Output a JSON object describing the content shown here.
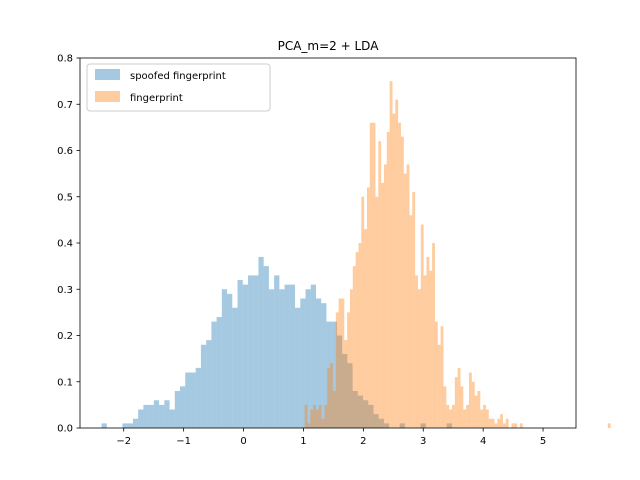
{
  "chart_data": {
    "type": "histogram",
    "title": "PCA_m=2 + LDA",
    "xlabel": "",
    "ylabel": "",
    "xlim": [
      -2.73,
      5.55
    ],
    "ylim": [
      0,
      0.8
    ],
    "xticks": [
      -2,
      -1,
      0,
      1,
      2,
      3,
      4,
      5
    ],
    "yticks": [
      0.0,
      0.1,
      0.2,
      0.3,
      0.4,
      0.5,
      0.6,
      0.7,
      0.8
    ],
    "grid": false,
    "legend_position": "upper-left",
    "series": [
      {
        "name": "spoofed fingerprint",
        "color": "#1f77b4",
        "alpha": 0.4,
        "bin_start": -2.37,
        "bin_width": 0.0873,
        "values": [
          0.01,
          0.0,
          0.0,
          0.0,
          0.01,
          0.01,
          0.02,
          0.04,
          0.05,
          0.05,
          0.06,
          0.05,
          0.06,
          0.04,
          0.08,
          0.09,
          0.12,
          0.12,
          0.13,
          0.18,
          0.19,
          0.23,
          0.24,
          0.3,
          0.29,
          0.26,
          0.32,
          0.31,
          0.33,
          0.33,
          0.37,
          0.35,
          0.3,
          0.33,
          0.3,
          0.31,
          0.31,
          0.26,
          0.28,
          0.3,
          0.31,
          0.28,
          0.27,
          0.23,
          0.23,
          0.2,
          0.16,
          0.14,
          0.08,
          0.07,
          0.06,
          0.05,
          0.03,
          0.02,
          0.01,
          0.0,
          0.0,
          0.01,
          0.0,
          0.0,
          0.0,
          0.01,
          0.0,
          0.0,
          0.0,
          0.0,
          0.01,
          0.0,
          0.0,
          0.0
        ]
      },
      {
        "name": "fingerprint",
        "color": "#ff7f0e",
        "alpha": 0.4,
        "bin_start": 1.02,
        "bin_width": 0.0473,
        "values": [
          0.05,
          0.01,
          0.04,
          0.05,
          0.04,
          0.05,
          0.02,
          0.05,
          0.13,
          0.14,
          0.08,
          0.25,
          0.28,
          0.28,
          0.19,
          0.25,
          0.3,
          0.35,
          0.38,
          0.4,
          0.5,
          0.43,
          0.52,
          0.66,
          0.66,
          0.5,
          0.62,
          0.53,
          0.57,
          0.64,
          0.75,
          0.68,
          0.71,
          0.66,
          0.63,
          0.55,
          0.57,
          0.46,
          0.51,
          0.33,
          0.3,
          0.44,
          0.33,
          0.37,
          0.34,
          0.4,
          0.23,
          0.18,
          0.22,
          0.09,
          0.05,
          0.04,
          0.05,
          0.11,
          0.13,
          0.09,
          0.04,
          0.05,
          0.12,
          0.1,
          0.07,
          0.08,
          0.04,
          0.05,
          0.04,
          0.02,
          0.02,
          0.01,
          0.02,
          0.03,
          0.01,
          0.02,
          0.0,
          0.01,
          0.01,
          0.0,
          0.01,
          0.0,
          0.0,
          0.0,
          0.0,
          0.0,
          0.0,
          0.0,
          0.0,
          0.0,
          0.0,
          0.0,
          0.0,
          0.0,
          0.0,
          0.0,
          0.0,
          0.0,
          0.0,
          0.0,
          0.0,
          0.0,
          0.0,
          0.0,
          0.0,
          0.0,
          0.0,
          0.0,
          0.0,
          0.0,
          0.0,
          0.01
        ]
      }
    ]
  }
}
